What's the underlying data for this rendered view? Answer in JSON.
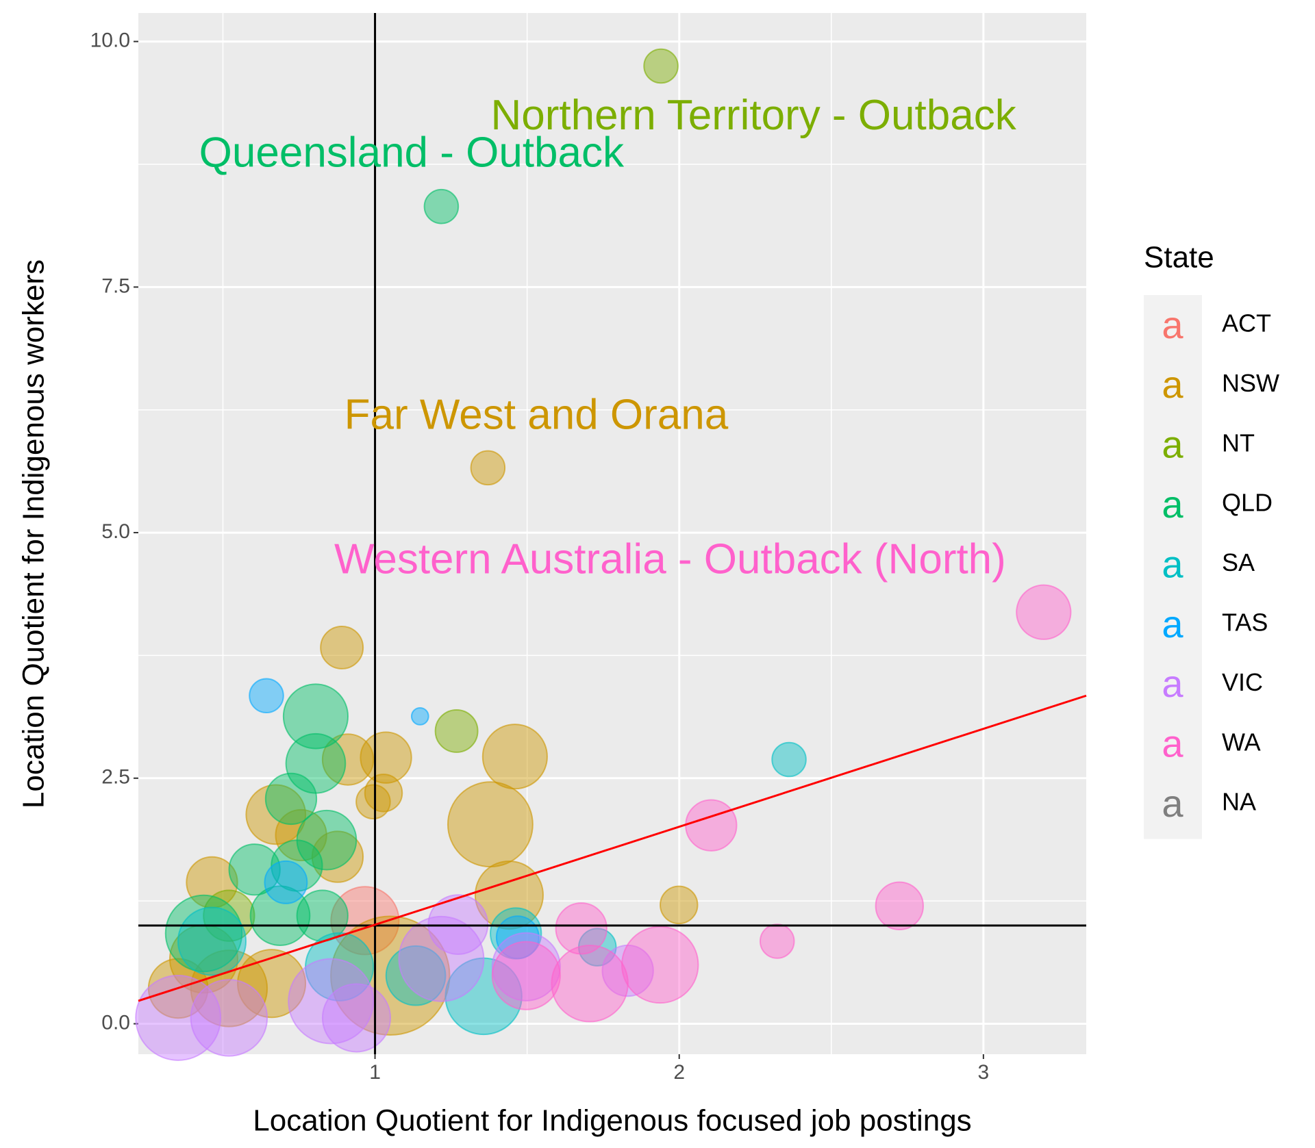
{
  "chart_data": {
    "type": "bubble",
    "x_label": "Location Quotient for Indigenous focused job postings",
    "y_label": "Location Quotient for Indigenous workers",
    "xlim": [
      0.222,
      3.338
    ],
    "ylim": [
      -0.31,
      10.29
    ],
    "xticks": [
      1,
      2,
      3
    ],
    "yticks": [
      {
        "value": 0,
        "label": "0.0"
      },
      {
        "value": 2.5,
        "label": "2.5"
      },
      {
        "value": 5,
        "label": "5.0"
      },
      {
        "value": 7.5,
        "label": "7.5"
      },
      {
        "value": 10,
        "label": "10.0"
      }
    ],
    "grid": true,
    "legend_title": "State",
    "legend_position": "right",
    "reference_lines": {
      "x": 1,
      "y": 1,
      "color": "#000000"
    },
    "trend_line": {
      "x": [
        0.222,
        3.338
      ],
      "y": [
        0.233,
        3.34
      ],
      "color": "#ff0000"
    },
    "annotations": [
      {
        "text": "Northern Territory - Outback",
        "x": 2.244,
        "y": 9.22,
        "color": "#7CAE00"
      },
      {
        "text": "Queensland - Outback",
        "x": 1.12,
        "y": 8.84,
        "color": "#00BE67"
      },
      {
        "text": "Far West and Orana",
        "x": 1.53,
        "y": 6.17,
        "color": "#CD9600"
      },
      {
        "text": "Western Australia - Outback (North)",
        "x": 1.97,
        "y": 4.7,
        "color": "#FF61CC"
      }
    ],
    "series": [
      {
        "name": "ACT",
        "color": "#F8766D",
        "x": [
          0.967
        ],
        "y": [
          1.05
        ],
        "sizes": [
          40
        ]
      },
      {
        "name": "NSW",
        "color": "#CD9600",
        "x": [
          1.371,
          0.891,
          1.46,
          1.036,
          0.911,
          1.028,
          0.994,
          1.379,
          1.999,
          1.441,
          0.464,
          0.674,
          0.757,
          0.877,
          0.437,
          0.52,
          0.353,
          0.66,
          1.05
        ],
        "y": [
          5.66,
          3.83,
          2.72,
          2.71,
          2.69,
          2.35,
          2.26,
          2.03,
          1.21,
          1.31,
          1.44,
          2.13,
          1.92,
          1.7,
          0.66,
          0.36,
          0.36,
          0.41,
          0.49
        ],
        "sizes": [
          20,
          25,
          38,
          30,
          30,
          22,
          20,
          50,
          22,
          40,
          30,
          35,
          30,
          30,
          40,
          45,
          35,
          40,
          70
        ]
      },
      {
        "name": "NT",
        "color": "#7CAE00",
        "x": [
          1.94,
          1.268,
          0.52
        ],
        "y": [
          9.75,
          2.98,
          1.1
        ],
        "sizes": [
          20,
          25,
          30
        ]
      },
      {
        "name": "QLD",
        "color": "#00BE67",
        "x": [
          1.218,
          0.805,
          0.805,
          0.724,
          0.604,
          0.743,
          0.841,
          0.437,
          0.688,
          0.827
        ],
        "y": [
          8.32,
          3.13,
          2.65,
          2.29,
          1.57,
          1.61,
          1.87,
          0.92,
          1.1,
          1.1
        ],
        "sizes": [
          20,
          38,
          35,
          30,
          30,
          30,
          35,
          45,
          35,
          30
        ]
      },
      {
        "name": "SA",
        "color": "#00BFC4",
        "x": [
          2.361,
          1.463,
          1.731,
          0.883,
          1.134,
          1.357,
          0.464
        ],
        "y": [
          2.69,
          0.92,
          0.78,
          0.58,
          0.49,
          0.28,
          0.84
        ],
        "sizes": [
          20,
          30,
          22,
          40,
          35,
          45,
          40
        ]
      },
      {
        "name": "TAS",
        "color": "#00A9FF",
        "x": [
          0.643,
          1.148,
          0.707,
          1.469
        ],
        "y": [
          3.34,
          3.13,
          1.44,
          0.88
        ],
        "sizes": [
          20,
          10,
          25,
          25
        ]
      },
      {
        "name": "VIC",
        "color": "#C77CFF",
        "x": [
          0.353,
          0.52,
          0.855,
          0.939,
          1.218,
          1.831,
          1.497,
          1.273
        ],
        "y": [
          0.06,
          0.06,
          0.23,
          0.06,
          0.66,
          0.54,
          0.58,
          1.01
        ],
        "sizes": [
          50,
          45,
          50,
          40,
          50,
          30,
          40,
          35
        ]
      },
      {
        "name": "WA",
        "color": "#FF61CC",
        "x": [
          3.198,
          2.105,
          2.724,
          2.322,
          1.937,
          1.706,
          1.678,
          1.497
        ],
        "y": [
          4.19,
          2.02,
          1.2,
          0.84,
          0.6,
          0.41,
          0.97,
          0.49
        ],
        "sizes": [
          32,
          30,
          28,
          20,
          45,
          45,
          30,
          40
        ]
      },
      {
        "name": "NA",
        "color": "#7F7F7F",
        "x": [],
        "y": [],
        "sizes": []
      }
    ]
  }
}
